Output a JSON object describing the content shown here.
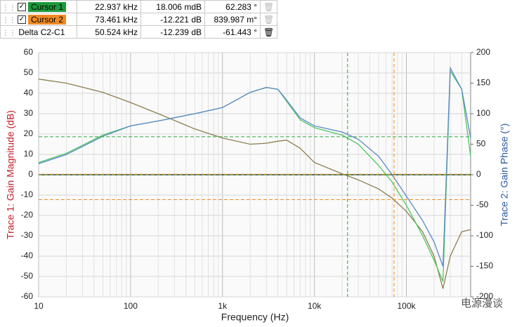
{
  "cursor_table": {
    "rows": [
      {
        "label": "Cursor 1",
        "frequency": "22.937 kHz",
        "gain": "18.006 mdB",
        "phase": "62.283 °",
        "color": "#1e9a3c"
      },
      {
        "label": "Cursor 2",
        "frequency": "73.461 kHz",
        "gain": "-12.221 dB",
        "phase": "839.987 m°",
        "color": "#f08a24"
      },
      {
        "label": "Delta C2-C1",
        "frequency": "50.524 kHz",
        "gain": "-12.239 dB",
        "phase": "-61.443 °"
      }
    ]
  },
  "chart_data": {
    "type": "line",
    "xlabel": "Frequency (Hz)",
    "ylabel": "Trace 1: Gain Magnitude (dB)",
    "y2label": "Trace 2: Gain Phase (°)",
    "xscale": "log",
    "xlim": [
      10,
      500000
    ],
    "xticks": [
      10,
      100,
      {
        "value": 1000,
        "label": "1k"
      },
      {
        "value": 10000,
        "label": "10k"
      },
      {
        "value": 100000,
        "label": "100k"
      }
    ],
    "ylim": [
      -60,
      60
    ],
    "yticks": [
      -60,
      -50,
      -40,
      -30,
      -20,
      -10,
      0,
      10,
      20,
      30,
      40,
      50,
      60
    ],
    "y2lim": [
      -200,
      200
    ],
    "y2ticks": [
      -200,
      -150,
      -100,
      -50,
      0,
      50,
      100,
      150,
      200
    ],
    "grid": true,
    "x": [
      10,
      20,
      50,
      100,
      200,
      500,
      1000,
      2000,
      3000,
      4000,
      5000,
      7000,
      10000,
      20000,
      30000,
      50000,
      70000,
      100000,
      150000,
      200000,
      250000,
      300000,
      400000,
      500000
    ],
    "series": [
      {
        "color": "#8c7f4e",
        "values": [
          47,
          45,
          40.5,
          35.5,
          30,
          22.5,
          18,
          15,
          15.5,
          16.5,
          17,
          13,
          6,
          0.5,
          -2.5,
          -7,
          -11.5,
          -18,
          -28,
          -40,
          -56,
          -40,
          -28,
          -27
        ]
      },
      {
        "color": "#4cc860",
        "axis": "y2",
        "values": [
          20,
          35,
          65,
          80,
          88,
          100,
          110,
          135,
          143,
          140,
          120,
          90,
          77,
          65,
          50,
          15,
          -12,
          -50,
          -100,
          -140,
          -175,
          170,
          140,
          30
        ]
      },
      {
        "color": "#5b87c8",
        "axis": "y2",
        "values": [
          18,
          33,
          63,
          80,
          88,
          100,
          110,
          135,
          143,
          140,
          122,
          93,
          80,
          70,
          58,
          30,
          0,
          -35,
          -75,
          -110,
          -150,
          175,
          140,
          60
        ]
      }
    ],
    "cursors": [
      {
        "frequency": 22937,
        "gain": 0.018006,
        "phase": 62.283,
        "color": "#2ea83a"
      },
      {
        "frequency": 73461,
        "gain": -12.221,
        "phase": 0.839987,
        "color": "#f08a24"
      }
    ],
    "watermark": "电源漫谈"
  }
}
